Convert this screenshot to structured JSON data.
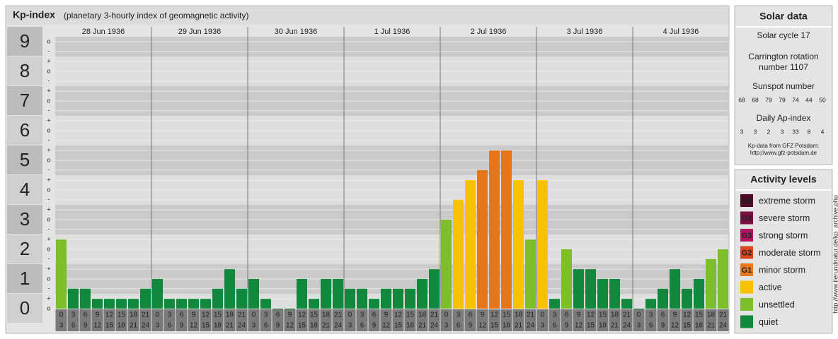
{
  "chart_data": {
    "type": "bar",
    "title": "Kp-index",
    "subtitle": "(planetary 3-hourly index of geomagnetic activity)",
    "days": [
      "28 Jun 1936",
      "29 Jun 1936",
      "30 Jun 1936",
      "1 Jul 1936",
      "2 Jul 1936",
      "3 Jul 1936",
      "4 Jul 1936"
    ],
    "intervals": [
      {
        "from": "0",
        "to": "3"
      },
      {
        "from": "3",
        "to": "6"
      },
      {
        "from": "6",
        "to": "9"
      },
      {
        "from": "9",
        "to": "12"
      },
      {
        "from": "12",
        "to": "15"
      },
      {
        "from": "15",
        "to": "18"
      },
      {
        "from": "18",
        "to": "21"
      },
      {
        "from": "21",
        "to": "24"
      }
    ],
    "values": [
      2.33,
      0.67,
      0.67,
      0.33,
      0.33,
      0.33,
      0.33,
      0.67,
      1,
      0.33,
      0.33,
      0.33,
      0.33,
      0.67,
      1.33,
      0.67,
      1,
      0.33,
      0,
      0,
      1,
      0.33,
      1,
      1,
      0.67,
      0.67,
      0.33,
      0.67,
      0.67,
      0.67,
      1,
      1.33,
      3,
      3.67,
      4.33,
      4.67,
      5.33,
      5.33,
      4.33,
      2.33,
      4.33,
      0.33,
      2,
      1.33,
      1.33,
      1,
      1,
      0.33,
      0,
      0.33,
      0.67,
      1.33,
      0.67,
      1,
      1.67,
      2
    ],
    "colors": [
      "#7dbf2a",
      "#12873e",
      "#12873e",
      "#12873e",
      "#12873e",
      "#12873e",
      "#12873e",
      "#12873e",
      "#12873e",
      "#12873e",
      "#12873e",
      "#12873e",
      "#12873e",
      "#12873e",
      "#12873e",
      "#12873e",
      "#12873e",
      "#12873e",
      "#12873e",
      "#12873e",
      "#12873e",
      "#12873e",
      "#12873e",
      "#12873e",
      "#12873e",
      "#12873e",
      "#12873e",
      "#12873e",
      "#12873e",
      "#12873e",
      "#12873e",
      "#12873e",
      "#7dbf2a",
      "#f7c300",
      "#f7c300",
      "#e6761c",
      "#e6761c",
      "#e6761c",
      "#f7c300",
      "#7dbf2a",
      "#f7c300",
      "#12873e",
      "#7dbf2a",
      "#12873e",
      "#12873e",
      "#12873e",
      "#12873e",
      "#12873e",
      "#12873e",
      "#12873e",
      "#12873e",
      "#12873e",
      "#12873e",
      "#12873e",
      "#7dbf2a",
      "#7dbf2a"
    ],
    "ylim": [
      -0.5,
      9.5
    ],
    "yticks": [
      0,
      1,
      2,
      3,
      4,
      5,
      6,
      7,
      8,
      9
    ],
    "yminor": [
      {
        "value": 0,
        "label": "o"
      },
      {
        "value": 0.33,
        "label": "+"
      },
      {
        "value": 0.67,
        "label": "-"
      },
      {
        "value": 1,
        "label": "o"
      },
      {
        "value": 1.33,
        "label": "+"
      },
      {
        "value": 1.67,
        "label": "-"
      },
      {
        "value": 2,
        "label": "o"
      },
      {
        "value": 2.33,
        "label": "+"
      },
      {
        "value": 2.67,
        "label": "-"
      },
      {
        "value": 3,
        "label": "o"
      },
      {
        "value": 3.33,
        "label": "+"
      },
      {
        "value": 3.67,
        "label": "-"
      },
      {
        "value": 4,
        "label": "o"
      },
      {
        "value": 4.33,
        "label": "+"
      },
      {
        "value": 4.67,
        "label": "-"
      },
      {
        "value": 5,
        "label": "o"
      },
      {
        "value": 5.33,
        "label": "+"
      },
      {
        "value": 5.67,
        "label": "-"
      },
      {
        "value": 6,
        "label": "o"
      },
      {
        "value": 6.33,
        "label": "+"
      },
      {
        "value": 6.67,
        "label": "-"
      },
      {
        "value": 7,
        "label": "o"
      },
      {
        "value": 7.33,
        "label": "+"
      },
      {
        "value": 7.67,
        "label": "-"
      },
      {
        "value": 8,
        "label": "o"
      },
      {
        "value": 8.33,
        "label": "+"
      },
      {
        "value": 8.67,
        "label": "-"
      },
      {
        "value": 9,
        "label": "o"
      }
    ],
    "grid": true
  },
  "solar": {
    "title": "Solar data",
    "cycle": "Solar cycle 17",
    "carrington": [
      "Carrington rotation",
      "number 1107"
    ],
    "sunspot_title": "Sunspot number",
    "sunspot": [
      68,
      68,
      79,
      79,
      74,
      44,
      50
    ],
    "ap_title": "Daily Ap-index",
    "ap": [
      3,
      3,
      2,
      3,
      33,
      8,
      4
    ],
    "source": [
      "Kp-data from GFZ Potsdam:",
      "http://www.gfz-potsdam.de"
    ]
  },
  "activity": {
    "title": "Activity levels",
    "levels": [
      {
        "badge": "G5",
        "label": "extreme storm",
        "color": "#4e0a24"
      },
      {
        "badge": "G4",
        "label": "severe storm",
        "color": "#7a1040"
      },
      {
        "badge": "G3",
        "label": "strong storm",
        "color": "#b2145e"
      },
      {
        "badge": "G2",
        "label": "moderate storm",
        "color": "#d8461e"
      },
      {
        "badge": "G1",
        "label": "minor storm",
        "color": "#e8791c"
      },
      {
        "badge": "",
        "label": "active",
        "color": "#f7c300"
      },
      {
        "badge": "",
        "label": "unsettled",
        "color": "#7dbf2a"
      },
      {
        "badge": "",
        "label": "quiet",
        "color": "#12873e"
      }
    ]
  },
  "side_text": "http://www.tierundnatur.de/kp_archive.php"
}
